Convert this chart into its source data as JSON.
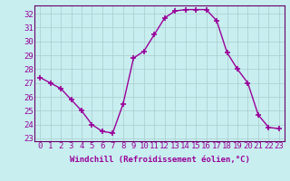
{
  "x": [
    0,
    1,
    2,
    3,
    4,
    5,
    6,
    7,
    8,
    9,
    10,
    11,
    12,
    13,
    14,
    15,
    16,
    17,
    18,
    19,
    20,
    21,
    22,
    23
  ],
  "y": [
    27.4,
    27.0,
    26.6,
    25.8,
    25.0,
    24.0,
    23.5,
    23.4,
    25.5,
    28.8,
    29.3,
    30.5,
    31.7,
    32.2,
    32.3,
    32.3,
    32.3,
    31.5,
    29.2,
    28.0,
    27.0,
    24.7,
    23.8,
    23.7
  ],
  "line_color": "#990099",
  "marker": "+",
  "marker_size": 4,
  "marker_lw": 1.2,
  "bg_color": "#c8eef0",
  "grid_color": "#aacccc",
  "xlabel": "Windchill (Refroidissement éolien,°C)",
  "xlabel_fontsize": 6.5,
  "tick_label_fontsize": 6.5,
  "ylim": [
    22.8,
    32.6
  ],
  "xlim": [
    -0.5,
    23.5
  ],
  "yticks": [
    23,
    24,
    25,
    26,
    27,
    28,
    29,
    30,
    31,
    32
  ],
  "xtick_labels": [
    "0",
    "1",
    "2",
    "3",
    "4",
    "5",
    "6",
    "7",
    "8",
    "9",
    "10",
    "11",
    "12",
    "13",
    "14",
    "15",
    "16",
    "17",
    "18",
    "19",
    "20",
    "21",
    "22",
    "23"
  ],
  "spine_color": "#660066",
  "linewidth": 1.0
}
